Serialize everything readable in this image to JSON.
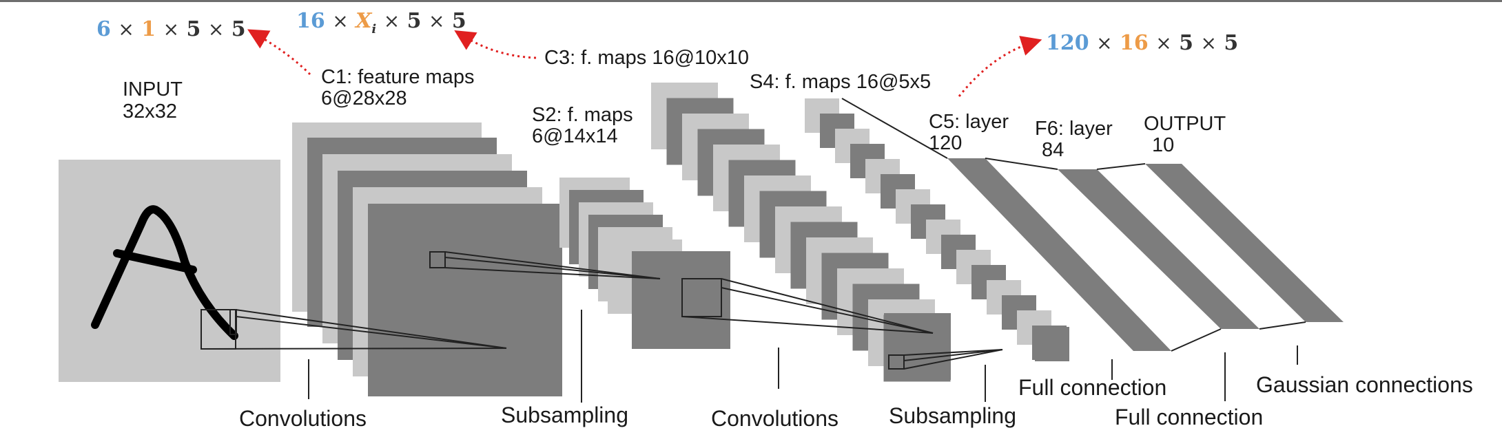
{
  "colors": {
    "light_map": "#c8c8c8",
    "dark_map": "#7d7d7d",
    "blue": "#5b9bd5",
    "orange": "#ed9b47",
    "dark_text": "#333333",
    "arrow": "#e02020"
  },
  "labels": {
    "input_title": "INPUT",
    "input_size": "32x32",
    "c1_title": "C1: feature maps",
    "c1_size": "6@28x28",
    "s2_title": "S2: f. maps",
    "s2_size": "6@14x14",
    "c3": "C3: f. maps 16@10x10",
    "s4": "S4: f. maps 16@5x5",
    "c5_title": "C5: layer",
    "c5_size": "120",
    "f6_title": "F6: layer",
    "f6_size": "84",
    "output_title": "OUTPUT",
    "output_size": "10"
  },
  "connections": {
    "convolutions_1": "Convolutions",
    "subsampling_1": "Subsampling",
    "convolutions_2": "Convolutions",
    "subsampling_2": "Subsampling",
    "full_connection_1": "Full connection",
    "full_connection_2": "Full connection",
    "gaussian": "Gaussian connections"
  },
  "annotations": {
    "c1_shape": {
      "a": "6",
      "b": "1",
      "c": "5",
      "d": "5",
      "times": "×"
    },
    "c3_shape": {
      "a": "16",
      "b": "X",
      "b_sub": "i",
      "c": "5",
      "d": "5",
      "times": "×"
    },
    "c5_shape": {
      "a": "120",
      "b": "16",
      "c": "5",
      "d": "5",
      "times": "×"
    }
  }
}
